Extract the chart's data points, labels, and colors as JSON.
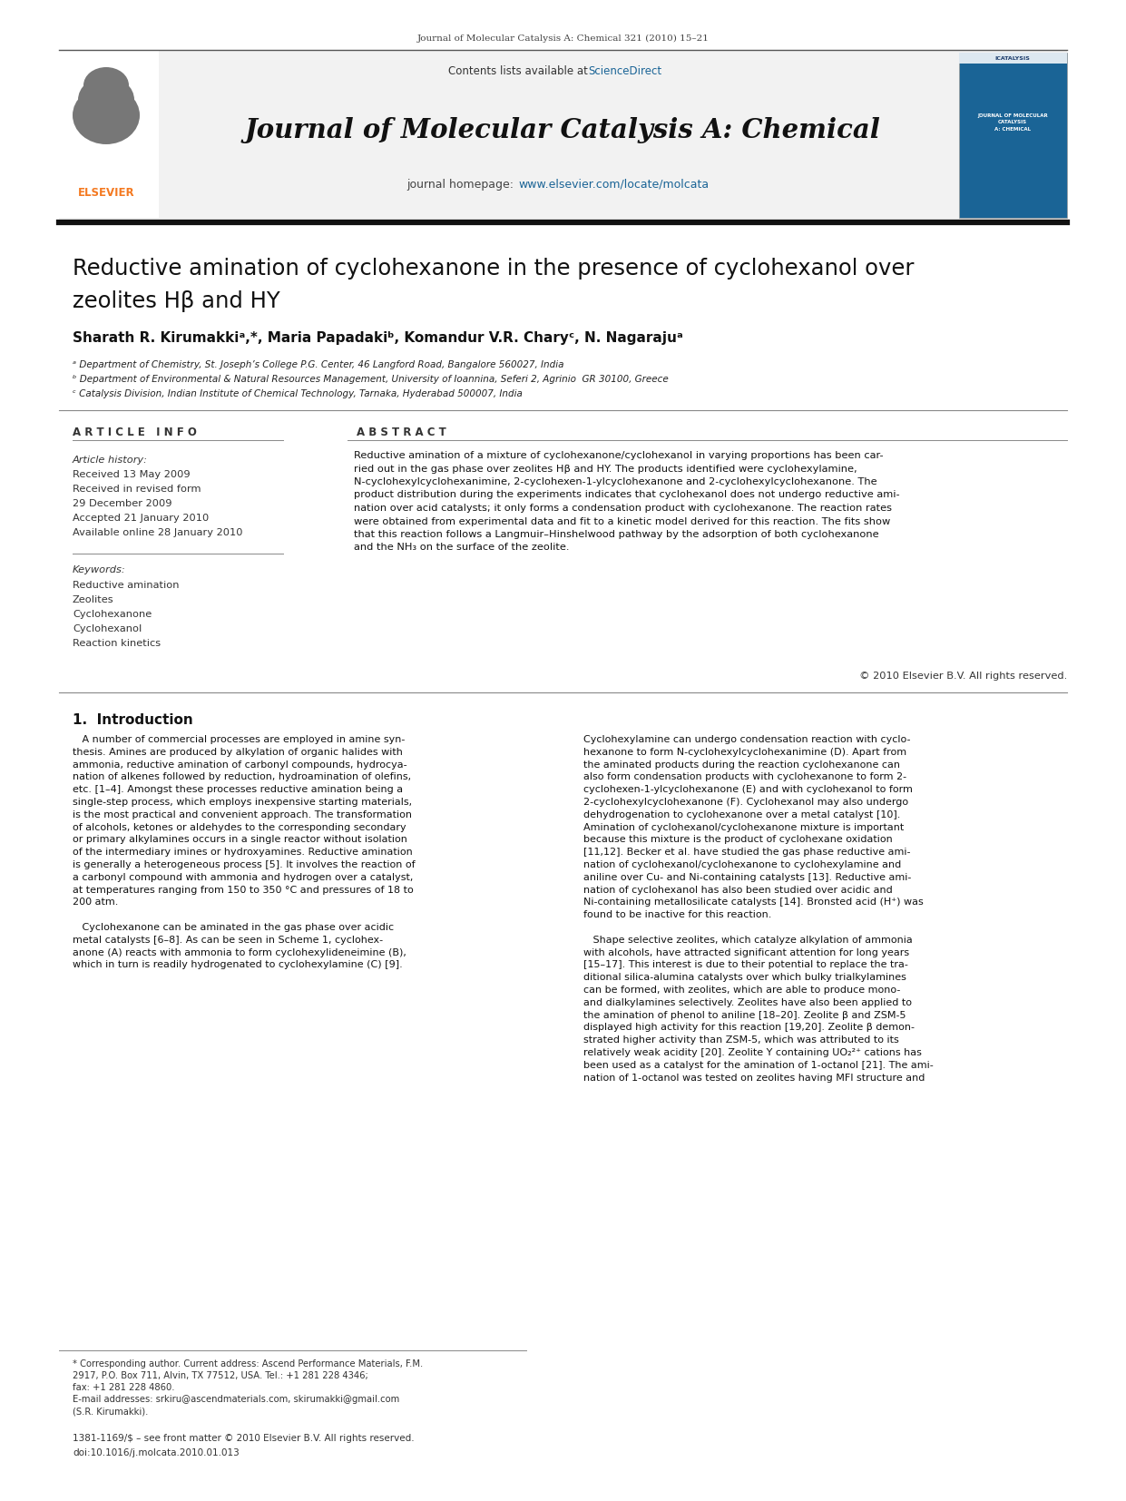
{
  "page_width": 12.41,
  "page_height": 16.54,
  "bg_color": "#ffffff",
  "top_journal_ref": "Journal of Molecular Catalysis A: Chemical 321 (2010) 15–21",
  "header_bg": "#f0f0f0",
  "sciencedirect_color": "#1a6496",
  "journal_title": "Journal of Molecular Catalysis A: Chemical",
  "elsevier_orange": "#f47920",
  "article_title_line1": "Reductive amination of cyclohexanone in the presence of cyclohexanol over",
  "article_title_line2": "zeolites Hβ and HY",
  "affil_a": "ᵃ Department of Chemistry, St. Joseph’s College P.G. Center, 46 Langford Road, Bangalore 560027, India",
  "affil_b": "ᵇ Department of Environmental & Natural Resources Management, University of Ioannina, Seferi 2, Agrinio  GR 30100, Greece",
  "affil_c": "ᶜ Catalysis Division, Indian Institute of Chemical Technology, Tarnaka, Hyderabad 500007, India",
  "article_info_header": "A R T I C L E   I N F O",
  "abstract_header": "A B S T R A C T",
  "article_history_label": "Article history:",
  "received1": "Received 13 May 2009",
  "received2": "Received in revised form",
  "received2b": "29 December 2009",
  "accepted": "Accepted 21 January 2010",
  "available": "Available online 28 January 2010",
  "keywords_label": "Keywords:",
  "keywords": [
    "Reductive amination",
    "Zeolites",
    "Cyclohexanone",
    "Cyclohexanol",
    "Reaction kinetics"
  ],
  "abstract_text": "Reductive amination of a mixture of cyclohexanone/cyclohexanol in varying proportions has been car-\nried out in the gas phase over zeolites Hβ and HY. The products identified were cyclohexylamine,\nN-cyclohexylcyclohexanimine, 2-cyclohexen-1-ylcyclohexanone and 2-cyclohexylcyclohexanone. The\nproduct distribution during the experiments indicates that cyclohexanol does not undergo reductive ami-\nnation over acid catalysts; it only forms a condensation product with cyclohexanone. The reaction rates\nwere obtained from experimental data and fit to a kinetic model derived for this reaction. The fits show\nthat this reaction follows a Langmuir–Hinshelwood pathway by the adsorption of both cyclohexanone\nand the NH₃ on the surface of the zeolite.",
  "copyright": "© 2010 Elsevier B.V. All rights reserved.",
  "intro_header": "1.  Introduction",
  "intro_text_left": [
    "   A number of commercial processes are employed in amine syn-",
    "thesis. Amines are produced by alkylation of organic halides with",
    "ammonia, reductive amination of carbonyl compounds, hydrocya-",
    "nation of alkenes followed by reduction, hydroamination of olefins,",
    "etc. [1–4]. Amongst these processes reductive amination being a",
    "single-step process, which employs inexpensive starting materials,",
    "is the most practical and convenient approach. The transformation",
    "of alcohols, ketones or aldehydes to the corresponding secondary",
    "or primary alkylamines occurs in a single reactor without isolation",
    "of the intermediary imines or hydroxyamines. Reductive amination",
    "is generally a heterogeneous process [5]. It involves the reaction of",
    "a carbonyl compound with ammonia and hydrogen over a catalyst,",
    "at temperatures ranging from 150 to 350 °C and pressures of 18 to",
    "200 atm.",
    "",
    "   Cyclohexanone can be aminated in the gas phase over acidic",
    "metal catalysts [6–8]. As can be seen in Scheme 1, cyclohex-",
    "anone (A) reacts with ammonia to form cyclohexylideneimine (B),",
    "which in turn is readily hydrogenated to cyclohexylamine (C) [9]."
  ],
  "intro_text_right": [
    "Cyclohexylamine can undergo condensation reaction with cyclo-",
    "hexanone to form N-cyclohexylcyclohexanimine (D). Apart from",
    "the aminated products during the reaction cyclohexanone can",
    "also form condensation products with cyclohexanone to form 2-",
    "cyclohexen-1-ylcyclohexanone (E) and with cyclohexanol to form",
    "2-cyclohexylcyclohexanone (F). Cyclohexanol may also undergo",
    "dehydrogenation to cyclohexanone over a metal catalyst [10].",
    "Amination of cyclohexanol/cyclohexanone mixture is important",
    "because this mixture is the product of cyclohexane oxidation",
    "[11,12]. Becker et al. have studied the gas phase reductive ami-",
    "nation of cyclohexanol/cyclohexanone to cyclohexylamine and",
    "aniline over Cu- and Ni-containing catalysts [13]. Reductive ami-",
    "nation of cyclohexanol has also been studied over acidic and",
    "Ni-containing metallosilicate catalysts [14]. Bronsted acid (H⁺) was",
    "found to be inactive for this reaction.",
    "",
    "   Shape selective zeolites, which catalyze alkylation of ammonia",
    "with alcohols, have attracted significant attention for long years",
    "[15–17]. This interest is due to their potential to replace the tra-",
    "ditional silica-alumina catalysts over which bulky trialkylamines",
    "can be formed, with zeolites, which are able to produce mono-",
    "and dialkylamines selectively. Zeolites have also been applied to",
    "the amination of phenol to aniline [18–20]. Zeolite β and ZSM-5",
    "displayed high activity for this reaction [19,20]. Zeolite β demon-",
    "strated higher activity than ZSM-5, which was attributed to its",
    "relatively weak acidity [20]. Zeolite Y containing UO₂²⁺ cations has",
    "been used as a catalyst for the amination of 1-octanol [21]. The ami-",
    "nation of 1-octanol was tested on zeolites having MFI structure and"
  ],
  "footnote_line1": "* Corresponding author. Current address: Ascend Performance Materials, F.M.",
  "footnote_line2": "2917, P.O. Box 711, Alvin, TX 77512, USA. Tel.: +1 281 228 4346;",
  "footnote_line3": "fax: +1 281 228 4860.",
  "footnote_line4": "E-mail addresses: srkiru@ascendmaterials.com, skirumakki@gmail.com",
  "footnote_line5": "(S.R. Kirumakki).",
  "issn_line": "1381-1169/$ – see front matter © 2010 Elsevier B.V. All rights reserved.",
  "doi_line": "doi:10.1016/j.molcata.2010.01.013"
}
